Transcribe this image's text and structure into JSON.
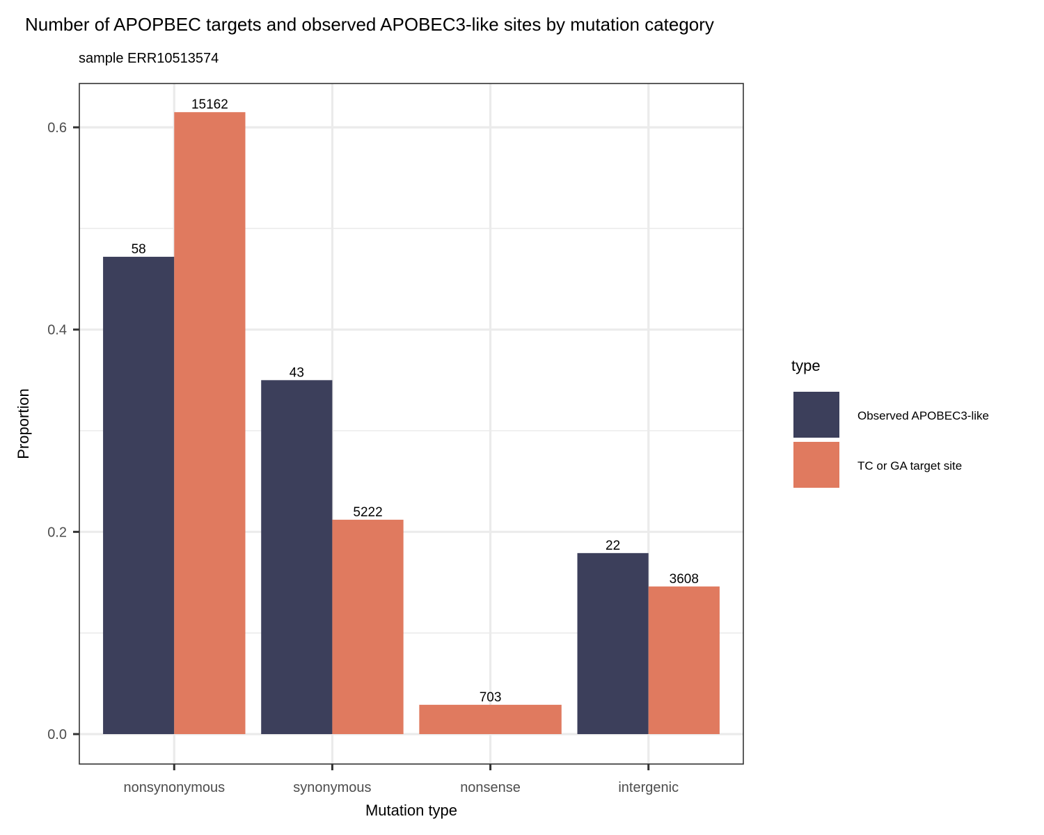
{
  "chart_data": {
    "type": "bar",
    "title": "Number of APOPBEC targets and observed APOBEC3-like sites by mutation category",
    "subtitle": "sample  ERR10513574",
    "xlabel": "Mutation type",
    "ylabel": "Proportion",
    "ylim": [
      -0.029,
      0.645
    ],
    "yticks": [
      0.0,
      0.2,
      0.4,
      0.6
    ],
    "ytick_labels": [
      "0.0",
      "0.2",
      "0.4",
      "0.6"
    ],
    "grid": true,
    "legend_placement": "right",
    "legend_title": "type",
    "categories": [
      "nonsynonymous",
      "synonymous",
      "nonsense",
      "intergenic"
    ],
    "series": [
      {
        "name": "Observed APOBEC3-like",
        "color": "#3c3f5b",
        "values": [
          0.472,
          0.35,
          null,
          0.179
        ],
        "labels": [
          "58",
          "43",
          null,
          "22"
        ]
      },
      {
        "name": "TC or GA target site",
        "color": "#e07a5f",
        "values": [
          0.615,
          0.212,
          0.029,
          0.146
        ],
        "labels": [
          "15162",
          "5222",
          "703",
          "3608"
        ]
      }
    ]
  }
}
